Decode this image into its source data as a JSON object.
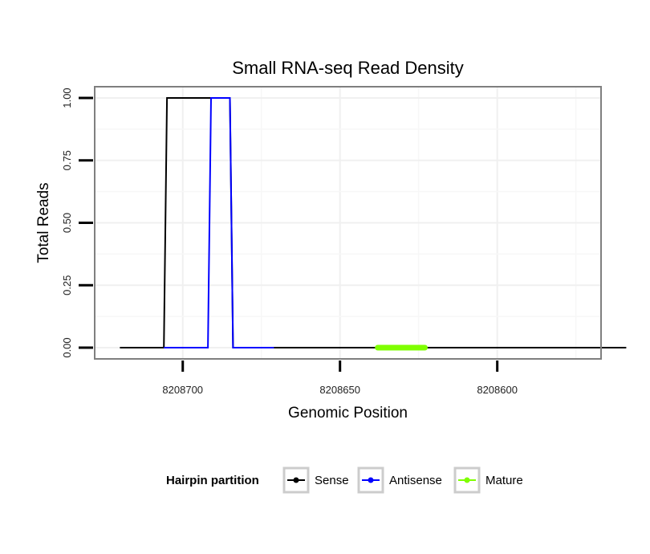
{
  "chart_data": {
    "type": "line",
    "title": "Small RNA-seq Read Density",
    "xlabel": "Genomic Position",
    "ylabel": "Total Reads",
    "x_reversed": true,
    "xlim": [
      8208728,
      8208567
    ],
    "ylim": [
      -0.045,
      1.045
    ],
    "x_ticks": [
      8208700,
      8208650,
      8208600
    ],
    "x_tick_labels": [
      "8208700",
      "8208650",
      "8208600"
    ],
    "y_ticks": [
      0,
      0.25,
      0.5,
      0.75,
      1
    ],
    "y_tick_labels": [
      "0.00",
      "0.25",
      "0.50",
      "0.75",
      "1.00"
    ],
    "grid": true,
    "legend": {
      "title": "Hairpin partition",
      "position": "bottom",
      "entries": [
        {
          "label": "Sense",
          "color": "#000000"
        },
        {
          "label": "Antisense",
          "color": "#0000ff"
        },
        {
          "label": "Mature",
          "color": "#7fff00"
        }
      ]
    },
    "series": [
      {
        "name": "Sense",
        "color": "#000000",
        "x": [
          8208720,
          8208706,
          8208705,
          8208699,
          8208698,
          8208685,
          8208684,
          8208559
        ],
        "y": [
          0,
          0,
          1,
          1,
          1,
          1,
          0,
          0
        ]
      },
      {
        "name": "Antisense",
        "color": "#0000ff",
        "x": [
          8208706,
          8208692,
          8208691,
          8208685,
          8208684,
          8208671
        ],
        "y": [
          0,
          0,
          1,
          1,
          0,
          0
        ]
      },
      {
        "name": "Mature",
        "color": "#7fff00",
        "x": [
          8208638,
          8208623
        ],
        "y": [
          0,
          0
        ]
      }
    ]
  }
}
